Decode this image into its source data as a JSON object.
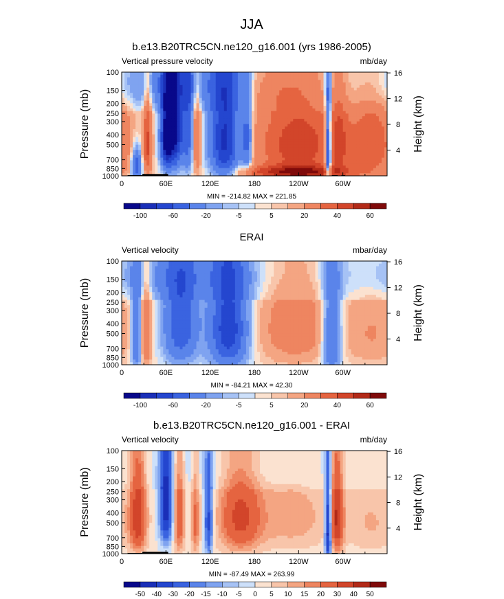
{
  "page": {
    "title": "JJA"
  },
  "colors": {
    "level_colors": [
      "#08088a",
      "#1a2fb8",
      "#2446cf",
      "#3a63e0",
      "#5a84ea",
      "#7fa3f0",
      "#a6c2f5",
      "#cde0fa",
      "#fbe2d0",
      "#f8c5aa",
      "#f4a582",
      "#ee8560",
      "#e56440",
      "#d2452a",
      "#b22a18",
      "#7f0a0a"
    ]
  },
  "chart_data": [
    {
      "type": "heatmap",
      "title": "b.e13.B20TRC5CN.ne120_g16.001 (yrs 1986-2005)",
      "left_label": "Vertical pressure velocity",
      "right_label": "mb/day",
      "ylabel": "Pressure (mb)",
      "y2label": "Height (km)",
      "xticks": [
        "0",
        "60E",
        "120E",
        "180",
        "120W",
        "60W"
      ],
      "xtick_lons": [
        0,
        60,
        120,
        180,
        240,
        300
      ],
      "xlim": [
        0,
        360
      ],
      "yticks": [
        "100",
        "150",
        "200",
        "250",
        "300",
        "400",
        "500",
        "700",
        "850",
        "1000"
      ],
      "ytick_values": [
        100,
        150,
        200,
        250,
        300,
        400,
        500,
        700,
        850,
        1000
      ],
      "ylim": [
        100,
        1000
      ],
      "y2ticks": [
        "4",
        "8",
        "12",
        "16"
      ],
      "y2tick_km": [
        4,
        8,
        12,
        16
      ],
      "minmax": "MIN = -214.82  MAX = 221.85",
      "colorbar_labels": [
        "-100",
        "-60",
        "-20",
        "-5",
        "5",
        "20",
        "40",
        "60"
      ],
      "colorbar_levels": [
        -120,
        -100,
        -80,
        -60,
        -40,
        -20,
        -10,
        -5,
        0,
        5,
        10,
        20,
        40,
        60,
        80,
        100,
        120
      ],
      "scale": 1.0,
      "features": [
        {
          "lon": 20,
          "p": 800,
          "wl": 5,
          "wp": 220,
          "a": -0.55
        },
        {
          "lon": 35,
          "p": 500,
          "wl": 4,
          "wp": 300,
          "a": 0.5
        },
        {
          "lon": 70,
          "p": 350,
          "wl": 9,
          "wp": 300,
          "a": -1.0
        },
        {
          "lon": 60,
          "p": 450,
          "wl": 5,
          "wp": 250,
          "a": -0.6
        },
        {
          "lon": 90,
          "p": 350,
          "wl": 5,
          "wp": 350,
          "a": -0.4
        },
        {
          "lon": 102,
          "p": 450,
          "wl": 4,
          "wp": 300,
          "a": 0.35
        },
        {
          "lon": 140,
          "p": 450,
          "wl": 14,
          "wp": 380,
          "a": -0.75
        },
        {
          "lon": 170,
          "p": 450,
          "wl": 5,
          "wp": 300,
          "a": -0.45
        },
        {
          "lon": 240,
          "p": 500,
          "wl": 40,
          "wp": 320,
          "a": 0.6
        },
        {
          "lon": 240,
          "p": 930,
          "wl": 50,
          "wp": 100,
          "a": 0.7
        },
        {
          "lon": 280,
          "p": 600,
          "wl": 3,
          "wp": 420,
          "a": -0.9
        },
        {
          "lon": 295,
          "p": 500,
          "wl": 8,
          "wp": 350,
          "a": 0.3
        },
        {
          "lon": 340,
          "p": 500,
          "wl": 25,
          "wp": 350,
          "a": 0.4
        },
        {
          "lon": 60,
          "p": 130,
          "wl": 90,
          "wp": 60,
          "a": -0.2
        },
        {
          "lon": 200,
          "p": 150,
          "wl": 30,
          "wp": 60,
          "a": 0.15
        }
      ],
      "terrain": [
        [
          8,
          35,
          985
        ],
        [
          28,
          35,
          960
        ],
        [
          285,
          8,
          985
        ],
        [
          298,
          5,
          985
        ]
      ]
    },
    {
      "type": "heatmap",
      "title": "ERAI",
      "left_label": "Vertical velocity",
      "right_label": "mbar/day",
      "ylabel": "Pressure (mb)",
      "y2label": "Height (km)",
      "xticks": [
        "0",
        "60E",
        "120E",
        "180",
        "120W",
        "60W"
      ],
      "xtick_lons": [
        0,
        60,
        120,
        180,
        240,
        300
      ],
      "xlim": [
        0,
        360
      ],
      "yticks": [
        "100",
        "150",
        "200",
        "250",
        "300",
        "400",
        "500",
        "700",
        "850",
        "1000"
      ],
      "ytick_values": [
        100,
        150,
        200,
        250,
        300,
        400,
        500,
        700,
        850,
        1000
      ],
      "ylim": [
        100,
        1000
      ],
      "y2ticks": [
        "4",
        "8",
        "12",
        "16"
      ],
      "y2tick_km": [
        4,
        8,
        12,
        16
      ],
      "minmax": "MIN = -84.21  MAX = 42.30",
      "colorbar_labels": [
        "-100",
        "-60",
        "-20",
        "-5",
        "5",
        "20",
        "40",
        "60"
      ],
      "colorbar_levels": [
        -120,
        -100,
        -80,
        -60,
        -40,
        -20,
        -10,
        -5,
        0,
        5,
        10,
        20,
        40,
        60,
        80,
        100,
        120
      ],
      "scale": 1.0,
      "features": [
        {
          "lon": 20,
          "p": 550,
          "wl": 5,
          "wp": 350,
          "a": -0.4
        },
        {
          "lon": 33,
          "p": 500,
          "wl": 5,
          "wp": 350,
          "a": 0.3
        },
        {
          "lon": 80,
          "p": 400,
          "wl": 16,
          "wp": 350,
          "a": -0.5
        },
        {
          "lon": 145,
          "p": 450,
          "wl": 18,
          "wp": 380,
          "a": -0.65
        },
        {
          "lon": 235,
          "p": 450,
          "wl": 35,
          "wp": 320,
          "a": 0.25
        },
        {
          "lon": 285,
          "p": 550,
          "wl": 9,
          "wp": 380,
          "a": -0.45
        },
        {
          "lon": 340,
          "p": 500,
          "wl": 25,
          "wp": 300,
          "a": 0.15
        },
        {
          "lon": 60,
          "p": 140,
          "wl": 90,
          "wp": 50,
          "a": -0.12
        }
      ],
      "terrain": []
    },
    {
      "type": "heatmap",
      "title": "b.e13.B20TRC5CN.ne120_g16.001 - ERAI",
      "left_label": "Vertical velocity",
      "right_label": "mb/day",
      "ylabel": "Pressure (mb)",
      "y2label": "Height (km)",
      "xticks": [
        "0",
        "60E",
        "120E",
        "180",
        "120W",
        "60W"
      ],
      "xtick_lons": [
        0,
        60,
        120,
        180,
        240,
        300
      ],
      "xlim": [
        0,
        360
      ],
      "yticks": [
        "100",
        "150",
        "200",
        "250",
        "300",
        "400",
        "500",
        "700",
        "850",
        "1000"
      ],
      "ytick_values": [
        100,
        150,
        200,
        250,
        300,
        400,
        500,
        700,
        850,
        1000
      ],
      "ylim": [
        100,
        1000
      ],
      "y2ticks": [
        "4",
        "8",
        "12",
        "16"
      ],
      "y2tick_km": [
        4,
        8,
        12,
        16
      ],
      "minmax": "MIN = -87.49  MAX = 263.99",
      "colorbar_labels": [
        "-50",
        "-40",
        "-30",
        "-20",
        "-15",
        "-10",
        "-5",
        "0",
        "5",
        "10",
        "15",
        "20",
        "30",
        "40",
        "50"
      ],
      "colorbar_levels": [
        -60,
        -50,
        -40,
        -30,
        -20,
        -15,
        -10,
        -5,
        0,
        5,
        10,
        15,
        20,
        30,
        40,
        50,
        60
      ],
      "scale": 0.5,
      "features": [
        {
          "lon": 22,
          "p": 450,
          "wl": 8,
          "wp": 320,
          "a": 0.6
        },
        {
          "lon": 60,
          "p": 350,
          "wl": 6,
          "wp": 280,
          "a": -0.8
        },
        {
          "lon": 78,
          "p": 450,
          "wl": 5,
          "wp": 330,
          "a": 0.45
        },
        {
          "lon": 100,
          "p": 500,
          "wl": 4,
          "wp": 330,
          "a": 0.35
        },
        {
          "lon": 118,
          "p": 500,
          "wl": 4,
          "wp": 350,
          "a": -0.6
        },
        {
          "lon": 160,
          "p": 450,
          "wl": 20,
          "wp": 320,
          "a": 0.5
        },
        {
          "lon": 230,
          "p": 450,
          "wl": 40,
          "wp": 300,
          "a": 0.2
        },
        {
          "lon": 280,
          "p": 600,
          "wl": 3,
          "wp": 400,
          "a": -0.85
        },
        {
          "lon": 292,
          "p": 450,
          "wl": 6,
          "wp": 330,
          "a": 0.6
        },
        {
          "lon": 340,
          "p": 500,
          "wl": 25,
          "wp": 300,
          "a": 0.15
        },
        {
          "lon": 200,
          "p": 150,
          "wl": 60,
          "wp": 50,
          "a": -0.08
        }
      ],
      "terrain": [
        [
          8,
          35,
          985
        ],
        [
          28,
          35,
          960
        ],
        [
          285,
          8,
          985
        ],
        [
          298,
          5,
          985
        ]
      ]
    }
  ]
}
